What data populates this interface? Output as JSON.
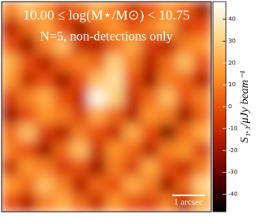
{
  "chart_data": {
    "type": "heatmap",
    "title": "10.00 ≤ log(M⋆/M⊙) < 10.75",
    "subtitle": "N=5, non-detections only",
    "scale_bar_label": "1 arcsec",
    "colorbar_label": "S₁.₃/μJy beam⁻¹",
    "colormap": [
      "#000000",
      "#5a0000",
      "#b01a00",
      "#e8500a",
      "#ff9a30",
      "#ffd98a",
      "#ffffff"
    ],
    "zlim": [
      -48,
      48
    ],
    "zticks": [
      -40,
      -30,
      -20,
      -10,
      0,
      10,
      20,
      30,
      40
    ],
    "z": [
      [
        10,
        25,
        15,
        -5,
        5,
        20,
        10,
        -10,
        0,
        15,
        5,
        -20
      ],
      [
        -15,
        5,
        20,
        0,
        -20,
        5,
        15,
        0,
        10,
        20,
        -5,
        0
      ],
      [
        0,
        -20,
        10,
        25,
        -10,
        -15,
        5,
        20,
        -5,
        -15,
        10,
        15
      ],
      [
        20,
        0,
        -15,
        5,
        10,
        5,
        30,
        10,
        -15,
        5,
        25,
        0
      ],
      [
        15,
        -10,
        0,
        -20,
        0,
        25,
        35,
        0,
        -20,
        10,
        5,
        -15
      ],
      [
        -5,
        10,
        20,
        0,
        -10,
        45,
        30,
        -10,
        5,
        25,
        0,
        10
      ],
      [
        -20,
        0,
        15,
        10,
        -5,
        20,
        5,
        -15,
        15,
        10,
        -20,
        5
      ],
      [
        5,
        25,
        -5,
        -15,
        10,
        0,
        -10,
        20,
        0,
        -25,
        5,
        20
      ],
      [
        10,
        0,
        -20,
        5,
        25,
        -10,
        15,
        5,
        -15,
        10,
        15,
        -5
      ],
      [
        -10,
        15,
        10,
        -5,
        0,
        -20,
        10,
        -5,
        20,
        0,
        -10,
        10
      ],
      [
        15,
        5,
        25,
        10,
        -15,
        5,
        0,
        20,
        10,
        -20,
        5,
        30
      ],
      [
        0,
        -15,
        10,
        20,
        5,
        -10,
        15,
        0,
        -5,
        10,
        -15,
        20
      ]
    ]
  }
}
